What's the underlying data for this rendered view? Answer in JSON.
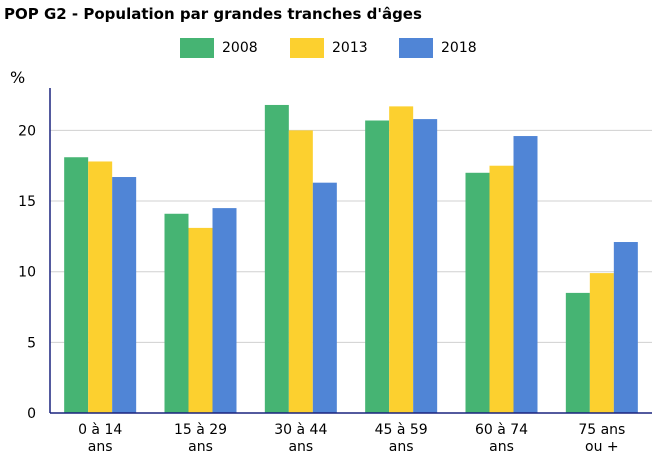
{
  "title": "POP G2 - Population par grandes tranches d'âges",
  "y_unit": "%",
  "colors": {
    "2008": "#46b473",
    "2013": "#fcd02f",
    "2018": "#5085d6",
    "axis": "#1a237e",
    "grid": "#d0d0d0"
  },
  "chart_data": {
    "type": "bar",
    "title": "POP G2 - Population par grandes tranches d'âges",
    "xlabel": "",
    "ylabel": "%",
    "ylim": [
      0,
      23
    ],
    "yticks": [
      0,
      5,
      10,
      15,
      20
    ],
    "grid": true,
    "legend_position": "top-center",
    "categories": [
      [
        "0 à 14",
        "ans"
      ],
      [
        "15 à 29",
        "ans"
      ],
      [
        "30 à 44",
        "ans"
      ],
      [
        "45 à 59",
        "ans"
      ],
      [
        "60 à 74",
        "ans"
      ],
      [
        "75 ans",
        "ou +"
      ]
    ],
    "series": [
      {
        "name": "2008",
        "color": "#46b473",
        "values": [
          18.1,
          14.1,
          21.8,
          20.7,
          17.0,
          8.5
        ]
      },
      {
        "name": "2013",
        "color": "#fcd02f",
        "values": [
          17.8,
          13.1,
          20.0,
          21.7,
          17.5,
          9.9
        ]
      },
      {
        "name": "2018",
        "color": "#5085d6",
        "values": [
          16.7,
          14.5,
          16.3,
          20.8,
          19.6,
          12.1
        ]
      }
    ]
  }
}
